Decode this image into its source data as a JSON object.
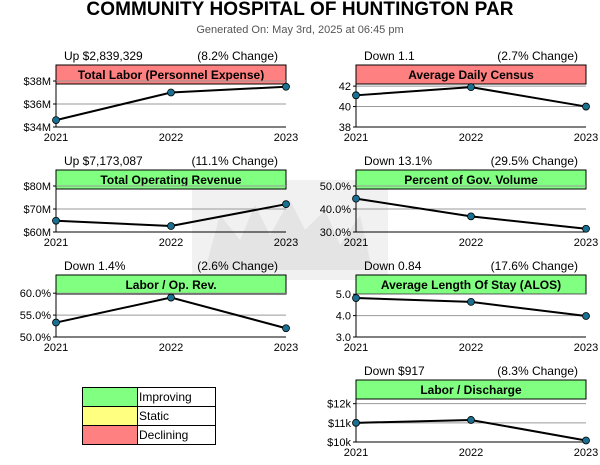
{
  "header": {
    "title": "COMMUNITY HOSPITAL OF HUNTINGTON PAR",
    "subtitle": "Generated On: May 3rd, 2025 at 06:45 pm"
  },
  "colors": {
    "improving": "#80ff80",
    "static": "#ffff80",
    "declining": "#ff8080",
    "point": "#1a7090"
  },
  "legend": [
    {
      "label": "Improving",
      "color": "#80ff80"
    },
    {
      "label": "Static",
      "color": "#ffff80"
    },
    {
      "label": "Declining",
      "color": "#ff8080"
    }
  ],
  "chart_data": [
    {
      "type": "line",
      "title": "Total Labor (Personnel Expense)",
      "status": "declining",
      "change_text": "Up $2,839,329",
      "pct_text": "(8.2% Change)",
      "x": [
        "2021",
        "2022",
        "2023"
      ],
      "values": [
        34.6,
        37.0,
        37.5
      ],
      "ylim": [
        34,
        38
      ],
      "yticks": [
        {
          "value": 34,
          "label": "$34M"
        },
        {
          "value": 36,
          "label": "$36M"
        },
        {
          "value": 38,
          "label": "$38M"
        }
      ],
      "grid": true
    },
    {
      "type": "line",
      "title": "Average Daily Census",
      "status": "declining",
      "change_text": "Down 1.1",
      "pct_text": "(2.7% Change)",
      "x": [
        "2021",
        "2022",
        "2023"
      ],
      "values": [
        41.1,
        41.9,
        40.0
      ],
      "ylim": [
        38,
        42.5
      ],
      "yticks": [
        {
          "value": 38,
          "label": "38"
        },
        {
          "value": 40,
          "label": "40"
        },
        {
          "value": 42,
          "label": "42"
        }
      ],
      "grid": true
    },
    {
      "type": "line",
      "title": "Total Operating Revenue",
      "status": "improving",
      "change_text": "Up $7,173,087",
      "pct_text": "(11.1% Change)",
      "x": [
        "2021",
        "2022",
        "2023"
      ],
      "values": [
        64.9,
        62.6,
        72.1
      ],
      "ylim": [
        60,
        80
      ],
      "yticks": [
        {
          "value": 60,
          "label": "$60M"
        },
        {
          "value": 70,
          "label": "$70M"
        },
        {
          "value": 80,
          "label": "$80M"
        }
      ],
      "grid": true
    },
    {
      "type": "line",
      "title": "Percent of Gov. Volume",
      "status": "improving",
      "change_text": "Down 13.1%",
      "pct_text": "(29.5% Change)",
      "x": [
        "2021",
        "2022",
        "2023"
      ],
      "values": [
        44.5,
        36.8,
        31.4
      ],
      "ylim": [
        30,
        50
      ],
      "yticks": [
        {
          "value": 30,
          "label": "30.0%"
        },
        {
          "value": 40,
          "label": "40.0%"
        },
        {
          "value": 50,
          "label": "50.0%"
        }
      ],
      "grid": true
    },
    {
      "type": "line",
      "title": "Labor / Op. Rev.",
      "status": "improving",
      "change_text": "Down 1.4%",
      "pct_text": "(2.6% Change)",
      "x": [
        "2021",
        "2022",
        "2023"
      ],
      "values": [
        53.3,
        59.0,
        52.0
      ],
      "ylim": [
        50,
        60.5
      ],
      "yticks": [
        {
          "value": 50,
          "label": "50.0%"
        },
        {
          "value": 55,
          "label": "55.0%"
        },
        {
          "value": 60,
          "label": "60.0%"
        }
      ],
      "grid": true
    },
    {
      "type": "line",
      "title": "Average Length Of Stay (ALOS)",
      "status": "improving",
      "change_text": "Down 0.84",
      "pct_text": "(17.6% Change)",
      "x": [
        "2021",
        "2022",
        "2023"
      ],
      "values": [
        4.82,
        4.64,
        3.98
      ],
      "ylim": [
        3.0,
        5.15
      ],
      "yticks": [
        {
          "value": 3.0,
          "label": "3.0"
        },
        {
          "value": 4.0,
          "label": "4.0"
        },
        {
          "value": 5.0,
          "label": "5.0"
        }
      ],
      "grid": true
    },
    {
      "type": "line",
      "title": "Labor / Discharge",
      "status": "improving",
      "change_text": "Down $917",
      "pct_text": "(8.3% Change)",
      "x": [
        "2021",
        "2022",
        "2023"
      ],
      "values": [
        11.0,
        11.15,
        10.08
      ],
      "ylim": [
        10,
        12.4
      ],
      "yticks": [
        {
          "value": 10,
          "label": "$10k"
        },
        {
          "value": 11,
          "label": "$11k"
        },
        {
          "value": 12,
          "label": "$12k"
        }
      ],
      "grid": true
    }
  ]
}
